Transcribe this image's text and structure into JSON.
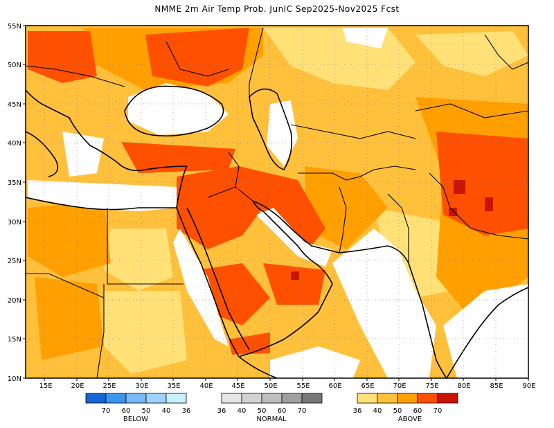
{
  "title": "NMME 2m Air Temp Prob. JunIC  Sep2025-Nov2025 Fcst",
  "lat_ticks": [
    "55N",
    "50N",
    "45N",
    "40N",
    "35N",
    "30N",
    "25N",
    "20N",
    "15N",
    "10N"
  ],
  "lon_ticks": [
    "15E",
    "20E",
    "25E",
    "30E",
    "35E",
    "40E",
    "45E",
    "50E",
    "55E",
    "60E",
    "65E",
    "70E",
    "75E",
    "80E",
    "85E",
    "90E"
  ],
  "legend": {
    "below": {
      "title": "BELOW",
      "labels": [
        "70",
        "60",
        "50",
        "40",
        "36"
      ],
      "colors": [
        "#1464d2",
        "#3c96f0",
        "#78b9fa",
        "#a0d2ff",
        "#c8f0ff"
      ]
    },
    "normal": {
      "title": "NORMAL",
      "labels": [
        "36",
        "40",
        "50",
        "60",
        "70"
      ],
      "colors": [
        "#e6e6e6",
        "#d2d2d2",
        "#bebebe",
        "#a0a0a0",
        "#787878"
      ]
    },
    "above": {
      "title": "ABOVE",
      "labels": [
        "36",
        "40",
        "50",
        "60",
        "70"
      ],
      "colors": [
        "#ffe178",
        "#ffc03c",
        "#ffa000",
        "#ff5000",
        "#c81400"
      ]
    }
  },
  "colors": {
    "above_36": "#ffe178",
    "above_40": "#ffc03c",
    "above_50": "#ffa000",
    "above_60": "#ff5000",
    "above_70": "#c81400",
    "land_outline": "#000000"
  }
}
